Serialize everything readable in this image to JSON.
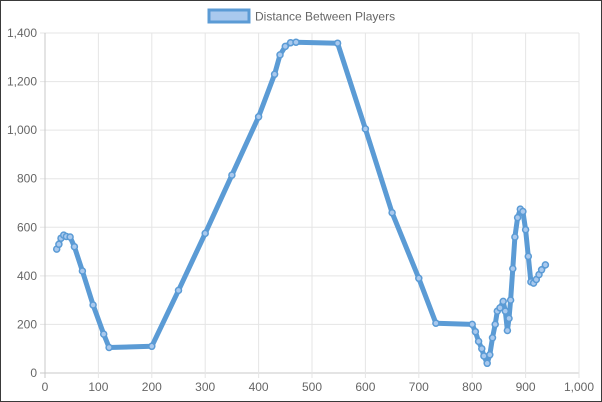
{
  "chart_data": {
    "type": "line",
    "series": [
      {
        "name": "Distance Between Players",
        "color": "#5b9bd5",
        "fill_color": "#a9c9ee",
        "points": [
          [
            22,
            510
          ],
          [
            26,
            530
          ],
          [
            30,
            555
          ],
          [
            35,
            568
          ],
          [
            40,
            562
          ],
          [
            47,
            560
          ],
          [
            55,
            520
          ],
          [
            70,
            420
          ],
          [
            90,
            280
          ],
          [
            110,
            160
          ],
          [
            120,
            105
          ],
          [
            200,
            110
          ],
          [
            250,
            340
          ],
          [
            300,
            575
          ],
          [
            350,
            815
          ],
          [
            400,
            1055
          ],
          [
            430,
            1230
          ],
          [
            440,
            1310
          ],
          [
            450,
            1345
          ],
          [
            460,
            1360
          ],
          [
            470,
            1362
          ],
          [
            548,
            1358
          ],
          [
            600,
            1005
          ],
          [
            650,
            660
          ],
          [
            700,
            390
          ],
          [
            732,
            205
          ],
          [
            800,
            200
          ],
          [
            806,
            170
          ],
          [
            812,
            130
          ],
          [
            818,
            100
          ],
          [
            822,
            70
          ],
          [
            828,
            40
          ],
          [
            833,
            75
          ],
          [
            838,
            145
          ],
          [
            843,
            200
          ],
          [
            847,
            255
          ],
          [
            852,
            268
          ],
          [
            858,
            295
          ],
          [
            862,
            255
          ],
          [
            866,
            175
          ],
          [
            869,
            225
          ],
          [
            872,
            300
          ],
          [
            876,
            430
          ],
          [
            880,
            560
          ],
          [
            885,
            640
          ],
          [
            890,
            675
          ],
          [
            895,
            665
          ],
          [
            900,
            590
          ],
          [
            905,
            480
          ],
          [
            910,
            375
          ],
          [
            915,
            370
          ],
          [
            920,
            385
          ],
          [
            925,
            405
          ],
          [
            930,
            425
          ],
          [
            937,
            445
          ]
        ]
      }
    ],
    "xlim": [
      0,
      1000
    ],
    "ylim": [
      0,
      1400
    ],
    "x_ticks": [
      0,
      100,
      200,
      300,
      400,
      500,
      600,
      700,
      800,
      900,
      1000
    ],
    "y_ticks": [
      0,
      200,
      400,
      600,
      800,
      1000,
      1200,
      1400
    ],
    "x_tick_labels": [
      "0",
      "100",
      "200",
      "300",
      "400",
      "500",
      "600",
      "700",
      "800",
      "900",
      "1,000"
    ],
    "y_tick_labels": [
      "0",
      "200",
      "400",
      "600",
      "800",
      "1,000",
      "1,200",
      "1,400"
    ],
    "grid": true,
    "legend_position": "top"
  }
}
